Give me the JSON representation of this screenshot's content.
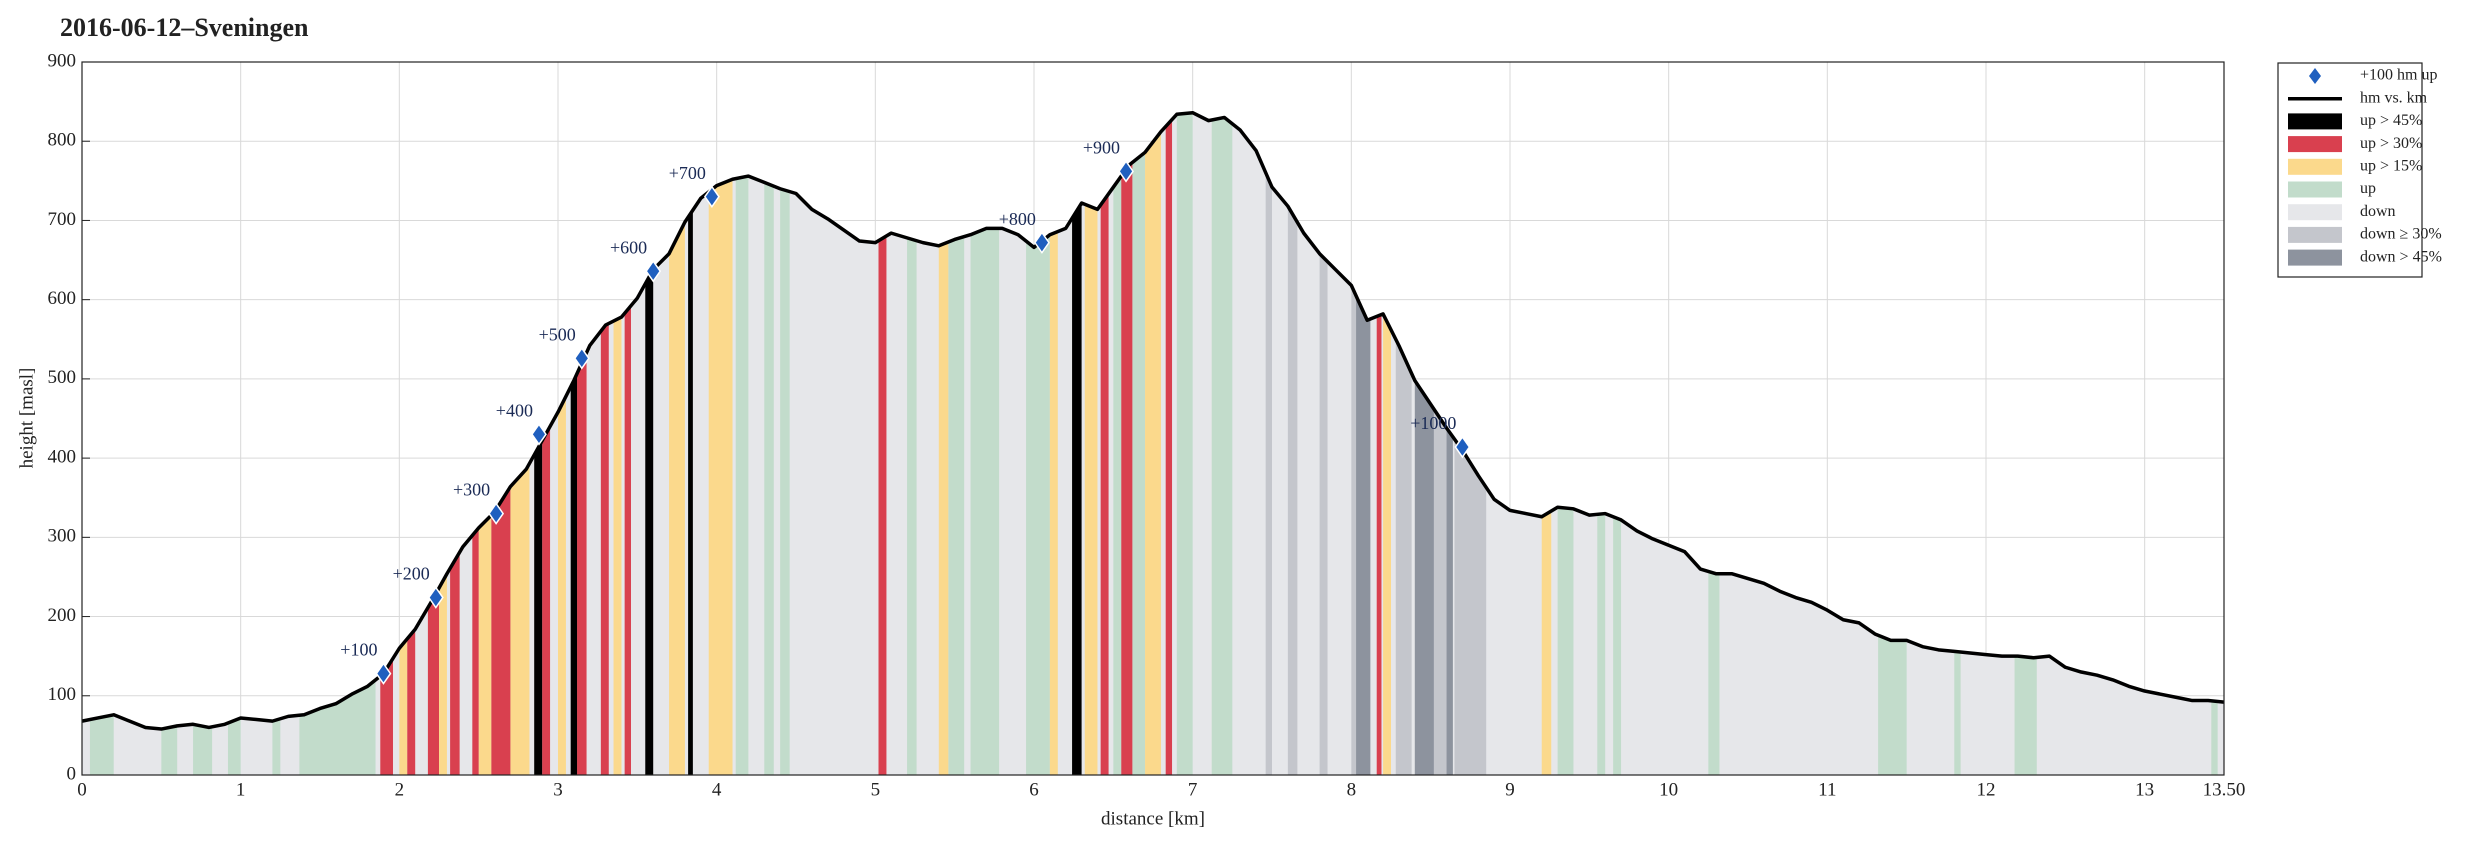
{
  "chart_data": {
    "type": "profile",
    "title": "2016-06-12–Sveningen",
    "x_label": "distance [km]",
    "y_label": "height [masl]",
    "xlim": [
      0,
      13.5
    ],
    "ylim": [
      0,
      900
    ],
    "grid": true,
    "legend": "outside-right",
    "xticks": [
      0,
      1,
      2,
      3,
      4,
      5,
      6,
      7,
      8,
      9,
      10,
      11,
      12,
      13,
      {
        "value": 13.5,
        "label": "13.50"
      }
    ],
    "yticks": [
      0,
      100,
      200,
      300,
      400,
      500,
      600,
      700,
      800,
      900
    ],
    "markers": {
      "name": "+100 hm up",
      "color": "#1f5fbf",
      "x": [
        1.9,
        2.23,
        2.61,
        2.88,
        3.15,
        3.6,
        3.97,
        6.05,
        6.58,
        8.7
      ],
      "values": [
        128,
        224,
        330,
        430,
        526,
        636,
        730,
        672,
        762,
        414
      ],
      "labels": [
        "+100",
        "+200",
        "+300",
        "+400",
        "+500",
        "+600",
        "+700",
        "+800",
        "+900",
        "+1000"
      ]
    },
    "profile": {
      "name": "hm vs. km",
      "color": "#000000",
      "x": [
        0,
        0.1,
        0.2,
        0.3,
        0.4,
        0.5,
        0.6,
        0.7,
        0.8,
        0.9,
        1,
        1.1,
        1.2,
        1.3,
        1.4,
        1.5,
        1.6,
        1.7,
        1.8,
        1.9,
        2,
        2.1,
        2.2,
        2.3,
        2.4,
        2.5,
        2.6,
        2.7,
        2.8,
        2.9,
        3,
        3.1,
        3.2,
        3.3,
        3.4,
        3.5,
        3.6,
        3.7,
        3.8,
        3.9,
        4,
        4.1,
        4.2,
        4.3,
        4.4,
        4.5,
        4.6,
        4.7,
        4.8,
        4.9,
        5,
        5.1,
        5.2,
        5.3,
        5.4,
        5.5,
        5.6,
        5.7,
        5.8,
        5.9,
        6,
        6.1,
        6.2,
        6.3,
        6.4,
        6.5,
        6.6,
        6.7,
        6.8,
        6.9,
        7,
        7.1,
        7.2,
        7.3,
        7.4,
        7.5,
        7.6,
        7.7,
        7.8,
        7.9,
        8,
        8.1,
        8.2,
        8.3,
        8.4,
        8.5,
        8.6,
        8.7,
        8.8,
        8.9,
        9,
        9.1,
        9.2,
        9.3,
        9.4,
        9.5,
        9.6,
        9.7,
        9.8,
        9.9,
        10,
        10.1,
        10.2,
        10.3,
        10.4,
        10.5,
        10.6,
        10.7,
        10.8,
        10.9,
        11,
        11.1,
        11.2,
        11.3,
        11.4,
        11.5,
        11.6,
        11.7,
        11.8,
        11.9,
        12,
        12.1,
        12.2,
        12.3,
        12.4,
        12.5,
        12.6,
        12.7,
        12.8,
        12.9,
        13,
        13.1,
        13.2,
        13.3,
        13.4,
        13.5
      ],
      "values": [
        68,
        72,
        76,
        68,
        60,
        58,
        62,
        64,
        60,
        64,
        72,
        70,
        68,
        74,
        76,
        84,
        90,
        102,
        112,
        128,
        160,
        184,
        218,
        254,
        288,
        312,
        332,
        364,
        386,
        422,
        458,
        498,
        542,
        568,
        578,
        602,
        638,
        658,
        698,
        728,
        744,
        752,
        756,
        748,
        740,
        734,
        714,
        702,
        688,
        674,
        672,
        684,
        678,
        672,
        668,
        676,
        682,
        690,
        690,
        682,
        666,
        682,
        690,
        722,
        714,
        742,
        770,
        786,
        812,
        834,
        836,
        826,
        830,
        814,
        788,
        742,
        718,
        684,
        658,
        638,
        618,
        574,
        582,
        542,
        498,
        468,
        438,
        410,
        378,
        348,
        334,
        330,
        326,
        338,
        336,
        328,
        330,
        322,
        308,
        298,
        290,
        282,
        260,
        254,
        254,
        248,
        242,
        232,
        224,
        218,
        208,
        196,
        192,
        178,
        170,
        170,
        162,
        158,
        156,
        154,
        152,
        150,
        150,
        148,
        150,
        136,
        130,
        126,
        120,
        112,
        106,
        102,
        98,
        94,
        94,
        92
      ]
    },
    "bands": [
      {
        "name": "up > 45%",
        "color": "#000000",
        "spans": [
          [
            2.85,
            2.9
          ],
          [
            3.08,
            3.12
          ],
          [
            3.55,
            3.6
          ],
          [
            3.82,
            3.85
          ],
          [
            6.24,
            6.3
          ]
        ]
      },
      {
        "name": "up > 30%",
        "color": "#d9404f",
        "spans": [
          [
            1.88,
            1.96
          ],
          [
            2.05,
            2.1
          ],
          [
            2.18,
            2.25
          ],
          [
            2.32,
            2.38
          ],
          [
            2.46,
            2.5
          ],
          [
            2.58,
            2.7
          ],
          [
            2.9,
            2.95
          ],
          [
            3.12,
            3.18
          ],
          [
            3.27,
            3.32
          ],
          [
            3.42,
            3.46
          ],
          [
            5.02,
            5.07
          ],
          [
            6.42,
            6.47
          ],
          [
            6.55,
            6.62
          ],
          [
            6.83,
            6.87
          ],
          [
            8.16,
            8.19
          ]
        ]
      },
      {
        "name": "up > 15%",
        "color": "#fbd98c",
        "spans": [
          [
            2,
            2.05
          ],
          [
            2.25,
            2.3
          ],
          [
            2.5,
            2.58
          ],
          [
            2.7,
            2.82
          ],
          [
            3,
            3.05
          ],
          [
            3.35,
            3.4
          ],
          [
            3.7,
            3.8
          ],
          [
            3.95,
            4.1
          ],
          [
            5.4,
            5.46
          ],
          [
            6.1,
            6.15
          ],
          [
            6.32,
            6.4
          ],
          [
            6.7,
            6.8
          ],
          [
            8.2,
            8.25
          ],
          [
            9.2,
            9.26
          ]
        ]
      },
      {
        "name": "up",
        "color": "#c2dccb",
        "spans": [
          [
            0.05,
            0.2
          ],
          [
            0.5,
            0.6
          ],
          [
            0.7,
            0.82
          ],
          [
            0.92,
            1
          ],
          [
            1.2,
            1.25
          ],
          [
            1.37,
            1.85
          ],
          [
            4.12,
            4.2
          ],
          [
            4.3,
            4.36
          ],
          [
            4.4,
            4.46
          ],
          [
            5.2,
            5.26
          ],
          [
            5.46,
            5.56
          ],
          [
            5.6,
            5.78
          ],
          [
            5.95,
            6.1
          ],
          [
            6.5,
            6.55
          ],
          [
            6.62,
            6.7
          ],
          [
            6.9,
            7
          ],
          [
            7.12,
            7.25
          ],
          [
            9.3,
            9.4
          ],
          [
            9.55,
            9.6
          ],
          [
            9.65,
            9.7
          ],
          [
            10.25,
            10.32
          ],
          [
            11.32,
            11.5
          ],
          [
            11.8,
            11.84
          ],
          [
            12.18,
            12.32
          ],
          [
            13.42,
            13.46
          ]
        ]
      },
      {
        "name": "down",
        "color": "#e6e7ea",
        "spans": [
          [
            0,
            13.5
          ]
        ]
      },
      {
        "name": "down ≥ 30%",
        "color": "#c4c6cc",
        "spans": [
          [
            7.46,
            7.5
          ],
          [
            7.6,
            7.66
          ],
          [
            7.8,
            7.85
          ],
          [
            8,
            8.04
          ],
          [
            8.28,
            8.38
          ],
          [
            8.5,
            8.6
          ],
          [
            8.65,
            8.85
          ]
        ]
      },
      {
        "name": "down > 45%",
        "color": "#8d939e",
        "spans": [
          [
            8.03,
            8.12
          ],
          [
            8.4,
            8.52
          ],
          [
            8.6,
            8.64
          ]
        ]
      }
    ]
  }
}
